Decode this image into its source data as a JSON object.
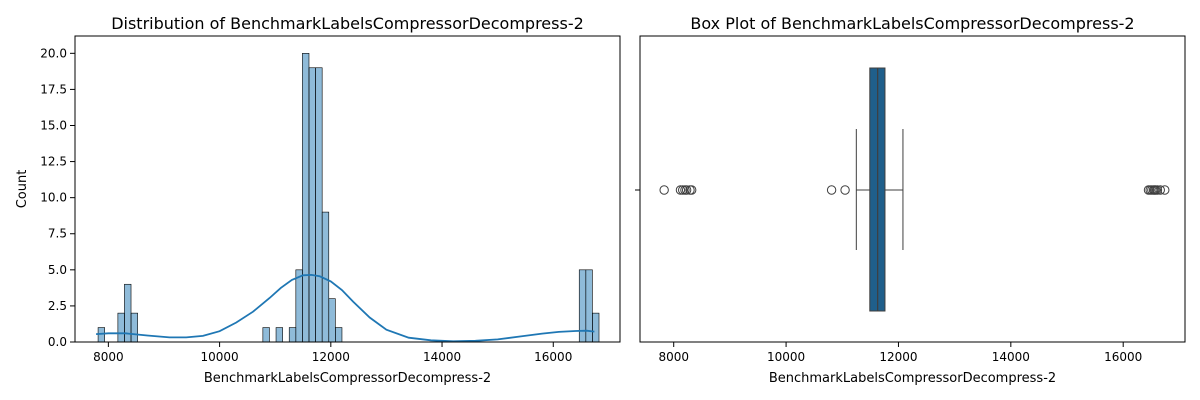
{
  "chart_data": [
    {
      "type": "histogram",
      "title": "Distribution of BenchmarkLabelsCompressorDecompress-2",
      "xlabel": "BenchmarkLabelsCompressorDecompress-2",
      "ylabel": "Count",
      "xlim": [
        7400,
        17200
      ],
      "ylim": [
        0,
        21.2
      ],
      "xticks": [
        8000,
        10000,
        12000,
        14000,
        16000
      ],
      "yticks": [
        "0.0",
        "2.5",
        "5.0",
        "7.5",
        "10.0",
        "12.5",
        "15.0",
        "17.5",
        "20.0"
      ],
      "bin_width": 118.5,
      "bins": [
        {
          "x": 7815,
          "count": 1
        },
        {
          "x": 8052,
          "count": 0
        },
        {
          "x": 8171,
          "count": 2
        },
        {
          "x": 8289,
          "count": 4
        },
        {
          "x": 8408,
          "count": 2
        },
        {
          "x": 10778,
          "count": 1
        },
        {
          "x": 11015,
          "count": 1
        },
        {
          "x": 11252,
          "count": 1
        },
        {
          "x": 11371,
          "count": 5
        },
        {
          "x": 11489,
          "count": 20
        },
        {
          "x": 11608,
          "count": 19
        },
        {
          "x": 11726,
          "count": 19
        },
        {
          "x": 11845,
          "count": 9
        },
        {
          "x": 11963,
          "count": 3
        },
        {
          "x": 12082,
          "count": 1
        },
        {
          "x": 16467,
          "count": 5
        },
        {
          "x": 16585,
          "count": 5
        },
        {
          "x": 16704,
          "count": 2
        }
      ],
      "kde": {
        "x": [
          7780,
          8000,
          8300,
          8700,
          9100,
          9400,
          9700,
          10000,
          10300,
          10600,
          10900,
          11100,
          11300,
          11500,
          11650,
          11800,
          12000,
          12200,
          12400,
          12700,
          13000,
          13400,
          13800,
          14200,
          14600,
          15000,
          15400,
          15800,
          16100,
          16400,
          16600,
          16740
        ],
        "y": [
          0.55,
          0.6,
          0.6,
          0.45,
          0.32,
          0.32,
          0.42,
          0.75,
          1.35,
          2.1,
          3.05,
          3.75,
          4.3,
          4.62,
          4.65,
          4.55,
          4.2,
          3.6,
          2.8,
          1.7,
          0.85,
          0.3,
          0.12,
          0.05,
          0.08,
          0.18,
          0.38,
          0.58,
          0.7,
          0.76,
          0.78,
          0.72
        ]
      }
    },
    {
      "type": "box",
      "title": "Box Plot of BenchmarkLabelsCompressorDecompress-2",
      "xlabel": "BenchmarkLabelsCompressorDecompress-2",
      "xlim": [
        7400,
        17100
      ],
      "xticks": [
        8000,
        10000,
        12000,
        14000,
        16000
      ],
      "whisker_low": 11250,
      "q1": 11490,
      "median": 11630,
      "q3": 11760,
      "whisker_high": 12080,
      "box_color": "#1f5f8b",
      "outliers": [
        7830,
        8120,
        8160,
        8200,
        8230,
        8290,
        8320,
        10810,
        11050,
        16450,
        16480,
        16510,
        16540,
        16560,
        16580,
        16610,
        16660,
        16740
      ]
    }
  ]
}
